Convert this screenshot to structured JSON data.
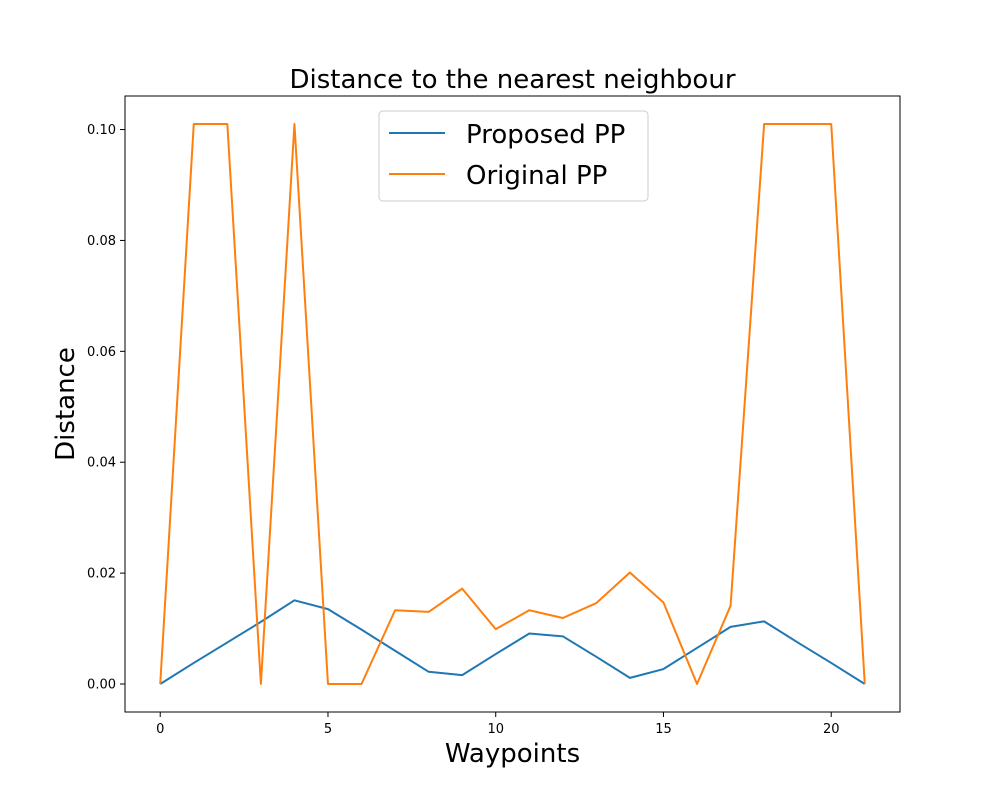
{
  "chart_data": {
    "type": "line",
    "title": "Distance to the nearest neighbour",
    "xlabel": "Waypoints",
    "ylabel": "Distance",
    "xlim": [
      -1.05,
      22.05
    ],
    "ylim": [
      -0.00505,
      0.10605
    ],
    "xticks": [
      0,
      5,
      10,
      15,
      20
    ],
    "yticks": [
      0.0,
      0.02,
      0.04,
      0.06,
      0.08,
      0.1
    ],
    "ytick_labels": [
      "0.00",
      "0.02",
      "0.04",
      "0.06",
      "0.08",
      "0.10"
    ],
    "grid": false,
    "legend_position": "top-center",
    "x": [
      0,
      1,
      2,
      3,
      4,
      5,
      6,
      7,
      8,
      9,
      10,
      11,
      12,
      13,
      14,
      15,
      16,
      17,
      18,
      19,
      20,
      21
    ],
    "series": [
      {
        "name": "Proposed PP",
        "color": "#1f77b4",
        "values": [
          0.0,
          0.0038,
          0.0075,
          0.0112,
          0.0151,
          0.0135,
          0.0098,
          0.006,
          0.0022,
          0.0016,
          0.0054,
          0.0091,
          0.0086,
          0.0049,
          0.0011,
          0.0027,
          0.0065,
          0.0103,
          0.0113,
          0.0075,
          0.0038,
          0.0
        ]
      },
      {
        "name": "Original PP",
        "color": "#ff7f0e",
        "values": [
          0.0,
          0.101,
          0.101,
          0.0,
          0.101,
          0.0,
          0.0,
          0.0133,
          0.013,
          0.0172,
          0.0099,
          0.0133,
          0.0119,
          0.0146,
          0.0201,
          0.0147,
          0.0,
          0.0141,
          0.101,
          0.101,
          0.101,
          0.0
        ]
      }
    ]
  }
}
